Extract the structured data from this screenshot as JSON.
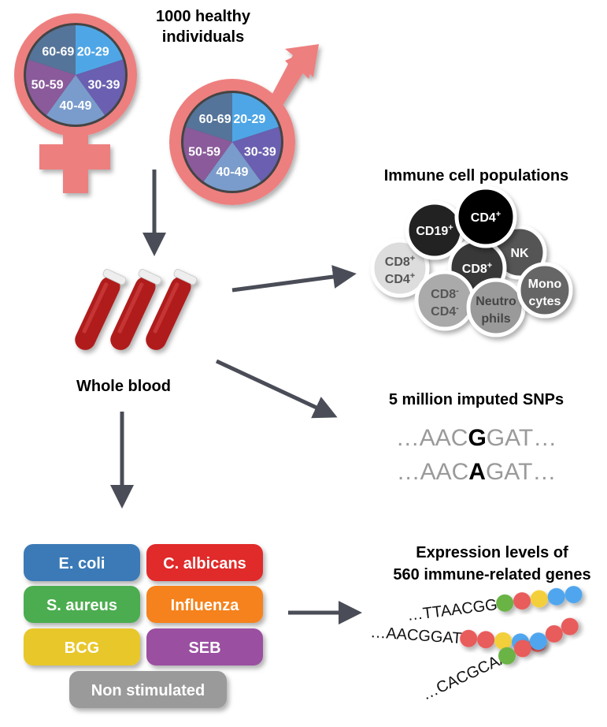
{
  "cohort": {
    "title_line1": "1000 healthy",
    "title_line2": "individuals",
    "age_groups": [
      "20-29",
      "30-39",
      "40-49",
      "50-59",
      "60-69"
    ],
    "age_colors": [
      "#4fa6e6",
      "#6a5fb0",
      "#7a9ccc",
      "#8a5a9a",
      "#557499"
    ],
    "symbol_color": "#ee7f7f"
  },
  "sample": {
    "label": "Whole blood"
  },
  "immune_cells": {
    "title": "Immune cell populations",
    "cells": [
      {
        "l1": "CD19",
        "s1": "+",
        "l2": "",
        "s2": "",
        "fill": "#222222",
        "text": "#ffffff"
      },
      {
        "l1": "CD4",
        "s1": "+",
        "l2": "",
        "s2": "",
        "fill": "#000000",
        "text": "#ffffff"
      },
      {
        "l1": "NK",
        "s1": "",
        "l2": "",
        "s2": "",
        "fill": "#555555",
        "text": "#ffffff"
      },
      {
        "l1": "CD8",
        "s1": "+",
        "l2": "",
        "s2": "",
        "fill": "#383838",
        "text": "#ffffff"
      },
      {
        "l1": "CD8",
        "s1": "+",
        "l2": "CD4",
        "s2": "+",
        "fill": "#dddddd",
        "text": "#555555"
      },
      {
        "l1": "CD8",
        "s1": "-",
        "l2": "CD4",
        "s2": "-",
        "fill": "#aaaaaa",
        "text": "#555555"
      },
      {
        "l1": "Neutro",
        "s1": "",
        "l2": "phils",
        "s2": "",
        "fill": "#9a9a9a",
        "text": "#444444"
      },
      {
        "l1": "Mono",
        "s1": "",
        "l2": "cytes",
        "s2": "",
        "fill": "#666666",
        "text": "#ffffff"
      }
    ]
  },
  "snps": {
    "title": "5 million imputed SNPs",
    "seq1": {
      "pre": "…AAC",
      "allele": "G",
      "post": "GAT…"
    },
    "seq2": {
      "pre": "…AAC",
      "allele": "A",
      "post": "GAT…"
    }
  },
  "stimuli": [
    {
      "label": "E. coli",
      "color": "#3a7ab6"
    },
    {
      "label": "C. albicans",
      "color": "#e12b2b"
    },
    {
      "label": "S. aureus",
      "color": "#4cad4f"
    },
    {
      "label": "Influenza",
      "color": "#f5821f"
    },
    {
      "label": "BCG",
      "color": "#e8c72c"
    },
    {
      "label": "SEB",
      "color": "#9b4fa1"
    },
    {
      "label": "Non stimulated",
      "color": "#9a9a9a"
    }
  ],
  "expression": {
    "title_line1": "Expression levels of",
    "title_line2": "560 immune-related genes",
    "seqs": [
      "…TTAACGG",
      "…AACGGAT",
      "…CACGCAA"
    ],
    "bead_colors": {
      "green": "#6ab344",
      "red": "#e85c5c",
      "yellow": "#f3cf3a",
      "blue": "#50a6ee"
    }
  }
}
